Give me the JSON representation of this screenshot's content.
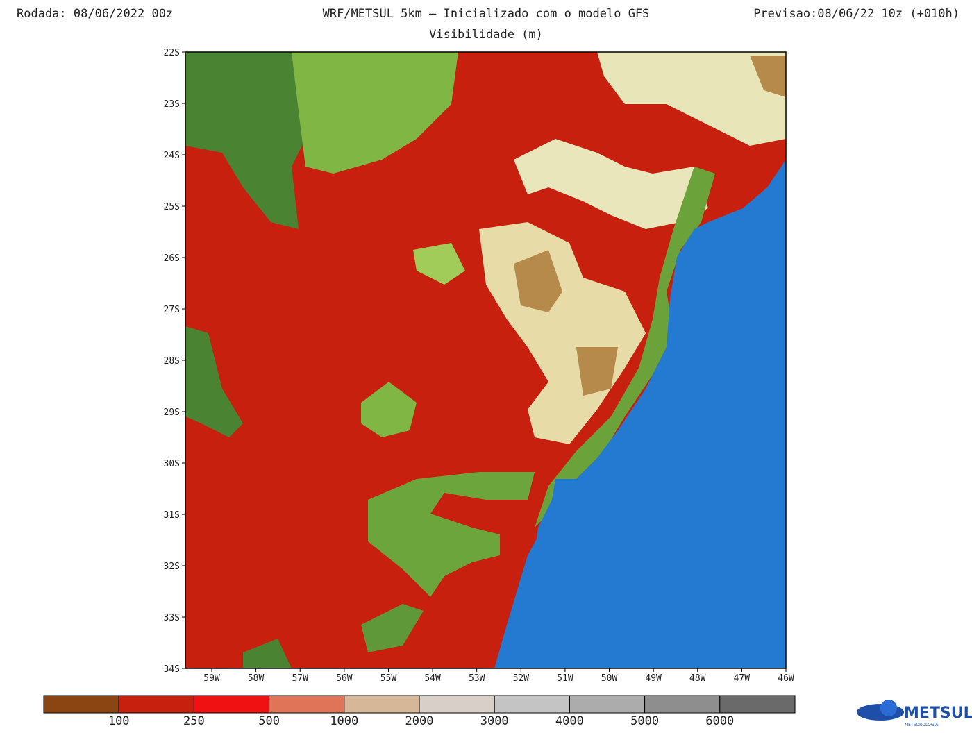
{
  "header": {
    "left": "Rodada: 08/06/2022 00z",
    "center": "WRF/METSUL 5km – Inicializado com o modelo GFS",
    "right": "Previsao:08/06/22 10z (+010h)",
    "subtitle": "Visibilidade (m)"
  },
  "map": {
    "lat_labels": [
      "22S",
      "23S",
      "24S",
      "25S",
      "26S",
      "27S",
      "28S",
      "29S",
      "30S",
      "31S",
      "32S",
      "33S",
      "34S"
    ],
    "lon_labels": [
      "59W",
      "58W",
      "57W",
      "56W",
      "55W",
      "54W",
      "53W",
      "52W",
      "51W",
      "50W",
      "49W",
      "48W",
      "47W",
      "46W"
    ]
  },
  "colorbar": {
    "colors": [
      "#8b4513",
      "#c8200e",
      "#f01212",
      "#e07458",
      "#d6b898",
      "#d8cfc8",
      "#c4c4c4",
      "#acacac",
      "#8e8e8e",
      "#6a6a6a"
    ],
    "labels": [
      "100",
      "250",
      "500",
      "1000",
      "2000",
      "3000",
      "4000",
      "5000",
      "6000"
    ]
  },
  "logo": {
    "name": "METSUL",
    "tagline": "METEOROLOGIA"
  }
}
